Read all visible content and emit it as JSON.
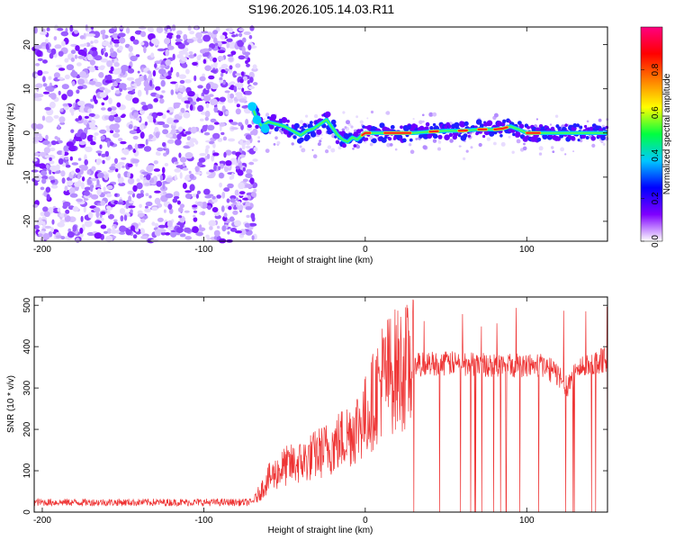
{
  "title": "S196.2026.105.14.03.R11",
  "chart_data": [
    {
      "type": "heatmap",
      "xlabel": "Height of straight line (km)",
      "ylabel": "Frequency (Hz)",
      "xlim": [
        -205,
        150
      ],
      "ylim": [
        -24.5,
        24
      ],
      "xticks": [
        -200,
        -100,
        0,
        100
      ],
      "yticks": [
        -20,
        -10,
        0,
        10,
        20
      ],
      "colorbar": {
        "label": "Normalized spectral amplitude",
        "range": [
          0,
          1
        ],
        "ticks": [
          0.0,
          0.2,
          0.4,
          0.6,
          0.8
        ],
        "tick_labels": [
          "0.0",
          "0.2",
          "0.4",
          "0.6",
          "0.8"
        ],
        "colormap": [
          "#ffffff",
          "#7f00ff",
          "#0000ff",
          "#00c8ff",
          "#00ff40",
          "#ffff00",
          "#ff8000",
          "#ff0000",
          "#ff0080"
        ]
      },
      "noise_region_x": [
        -205,
        -68
      ],
      "signal_trace": {
        "x": [
          -70,
          -67,
          -64,
          -60,
          -55,
          -50,
          -45,
          -40,
          -36,
          -32,
          -28,
          -24,
          -20,
          -17,
          -14,
          -11,
          -8,
          -5,
          -2,
          0,
          5,
          10,
          20,
          30,
          40,
          50,
          60,
          70,
          80,
          85,
          90,
          95,
          100,
          110,
          120,
          130,
          140,
          150
        ],
        "y": [
          6,
          3,
          1.5,
          2.5,
          2,
          1.5,
          0.5,
          -0.5,
          0.5,
          1,
          2,
          3,
          1,
          -0.5,
          -1.5,
          -2,
          -1,
          -1.5,
          -0.5,
          0,
          0,
          0,
          0,
          0,
          0.3,
          0.5,
          0.5,
          0.8,
          0.8,
          1,
          1.5,
          0.8,
          0,
          0,
          0,
          0,
          0,
          0
        ]
      }
    },
    {
      "type": "line",
      "xlabel": "Height of straight line (km)",
      "ylabel": "SNR (10 * v/v)",
      "xlim": [
        -205,
        150
      ],
      "ylim": [
        0,
        520
      ],
      "xticks": [
        -200,
        -100,
        0,
        100
      ],
      "yticks": [
        0,
        100,
        200,
        300,
        400,
        500
      ],
      "color": "#ee3333",
      "envelope": {
        "x": [
          -205,
          -180,
          -150,
          -120,
          -90,
          -70,
          -60,
          -50,
          -40,
          -30,
          -20,
          -10,
          0,
          5,
          10,
          15,
          20,
          30,
          40,
          50,
          60,
          70,
          80,
          90,
          100,
          110,
          120,
          125,
          130,
          140,
          150
        ],
        "y": [
          20,
          20,
          20,
          20,
          20,
          20,
          80,
          110,
          120,
          140,
          160,
          190,
          230,
          270,
          320,
          335,
          345,
          355,
          360,
          360,
          358,
          358,
          355,
          355,
          355,
          355,
          330,
          305,
          340,
          360,
          370
        ]
      },
      "dropouts_x_range": [
        30,
        148
      ]
    }
  ]
}
